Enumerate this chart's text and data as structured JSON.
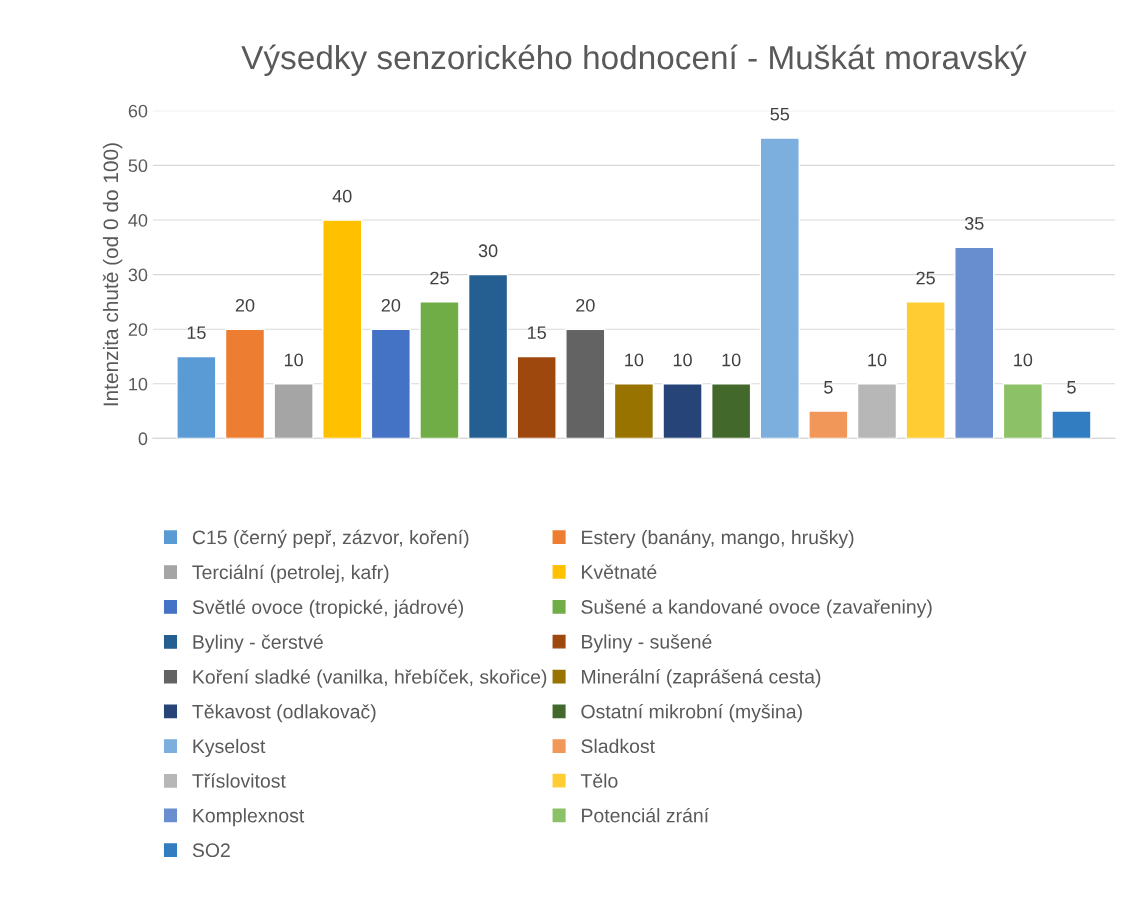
{
  "chart_data": {
    "type": "bar",
    "title": "Výsedky senzorického hodnocení - Muškát moravský",
    "ylabel": "Intenzita chutě (od 0 do 100)",
    "categories": [
      null
    ],
    "series": [
      {
        "name": "C15 (černý pepř, zázvor, koření)",
        "color": "#5b9bd5",
        "values": [
          15
        ]
      },
      {
        "name": "Estery (banány, mango, hrušky)",
        "color": "#ed7d31",
        "values": [
          20
        ]
      },
      {
        "name": "Terciální (petrolej, kafr)",
        "color": "#a5a5a5",
        "values": [
          10
        ]
      },
      {
        "name": "Květnaté",
        "color": "#ffc000",
        "values": [
          40
        ]
      },
      {
        "name": "Světlé ovoce (tropické, jádrové)",
        "color": "#4472c4",
        "values": [
          20
        ]
      },
      {
        "name": "Sušené a kandované ovoce (zavařeniny)",
        "color": "#70ad47",
        "values": [
          25
        ]
      },
      {
        "name": "Byliny - čerstvé",
        "color": "#255e91",
        "values": [
          30
        ]
      },
      {
        "name": "Byliny - sušené",
        "color": "#9e480e",
        "values": [
          15
        ]
      },
      {
        "name": "Koření sladké (vanilka, hřebíček, skořice)",
        "color": "#636363",
        "values": [
          20
        ]
      },
      {
        "name": "Minerální (zaprášená cesta)",
        "color": "#997300",
        "values": [
          10
        ]
      },
      {
        "name": "Těkavost (odlakovač)",
        "color": "#264478",
        "values": [
          10
        ]
      },
      {
        "name": "Ostatní mikrobní (myšina)",
        "color": "#43682b",
        "values": [
          10
        ]
      },
      {
        "name": "Kyselost",
        "color": "#7cafdd",
        "values": [
          55
        ]
      },
      {
        "name": "Sladkost",
        "color": "#f1975a",
        "values": [
          5
        ]
      },
      {
        "name": "Tříslovitost",
        "color": "#b7b7b7",
        "values": [
          10
        ]
      },
      {
        "name": "Tělo",
        "color": "#ffcd33",
        "values": [
          25
        ]
      },
      {
        "name": "Komplexnost",
        "color": "#698ed0",
        "values": [
          35
        ]
      },
      {
        "name": "Potenciál zrání",
        "color": "#8cc168",
        "values": [
          10
        ]
      },
      {
        "name": "SO2",
        "color": "#327dc2",
        "values": [
          5
        ]
      }
    ],
    "ylim": [
      0,
      60
    ],
    "yticks": [
      0,
      10,
      20,
      30,
      40,
      50,
      60
    ],
    "grid": "y",
    "legend": "bottom",
    "data_labels": true
  }
}
